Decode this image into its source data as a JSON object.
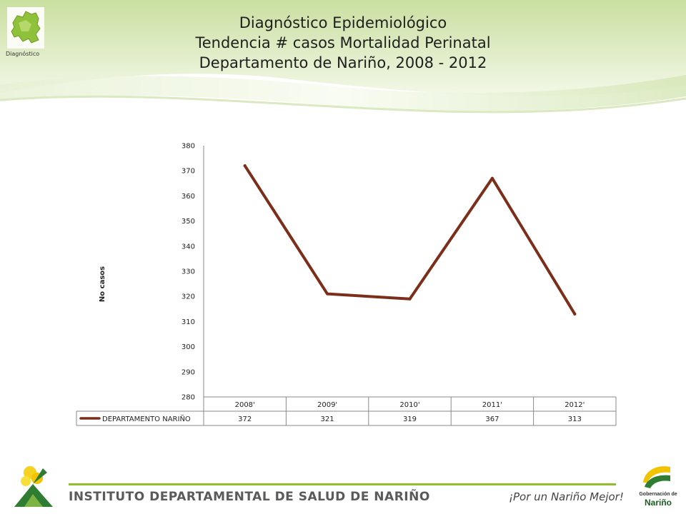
{
  "header": {
    "logo_caption": "Diagnóstico",
    "title_lines": [
      "Diagnóstico Epidemiológico",
      "Tendencia # casos Mortalidad Perinatal",
      "Departamento de Nariño,  2008 - 2012"
    ]
  },
  "chart_data": {
    "type": "line",
    "ylabel": "No casos",
    "ylim": [
      280,
      380
    ],
    "yticks": [
      280,
      290,
      300,
      310,
      320,
      330,
      340,
      350,
      360,
      370,
      380
    ],
    "categories": [
      "2008'",
      "2009'",
      "2010'",
      "2011'",
      "2012'"
    ],
    "series": [
      {
        "name": "DEPARTAMENTO NARIÑO",
        "values": [
          372,
          321,
          319,
          367,
          313
        ],
        "color": "#7b2e1a"
      }
    ],
    "data_table": true,
    "grid": false
  },
  "footer": {
    "institute": "INSTITUTO DEPARTAMENTAL DE SALUD DE NARIÑO",
    "slogan": "¡Por un Nariño Mejor!",
    "gob_line1": "Gobernación de",
    "gob_line2": "Nariño"
  },
  "colors": {
    "accent_green": "#8fbf2a",
    "series_line": "#7b2e1a"
  }
}
